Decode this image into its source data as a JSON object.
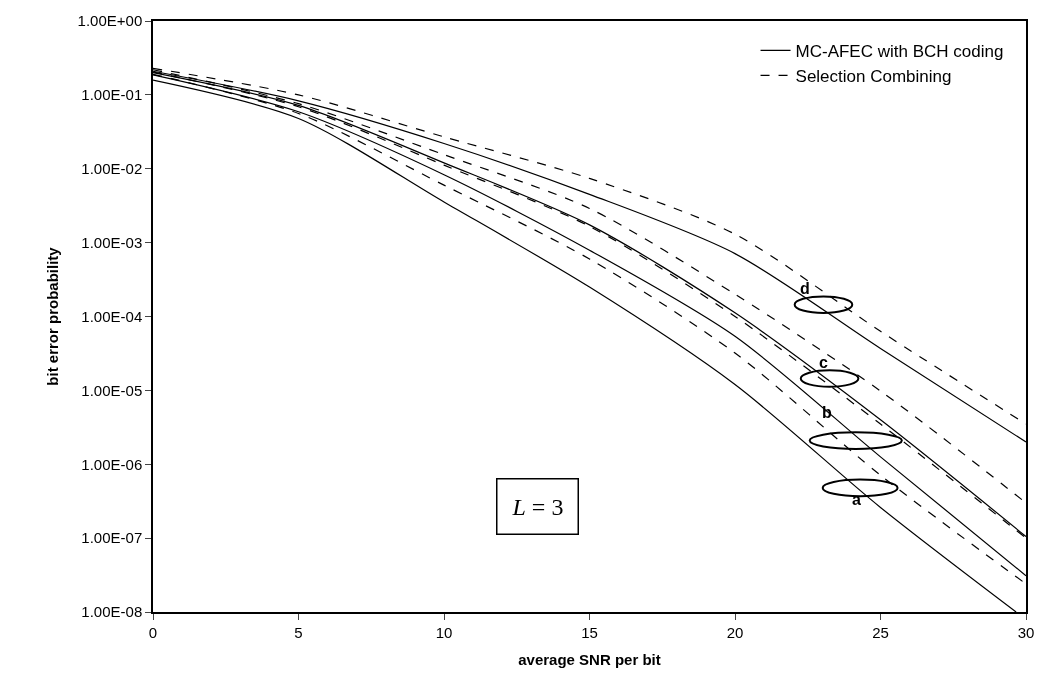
{
  "chart_data": {
    "type": "line",
    "xlabel": "average SNR per bit",
    "ylabel": "bit error probability",
    "x": [
      0,
      5,
      10,
      15,
      20,
      25,
      30
    ],
    "series": [
      {
        "name": "MC-AFEC with BCH coding",
        "color": "#000000",
        "line_style": "solid",
        "x": [
          0,
          5,
          10,
          15,
          20,
          25,
          29.66
        ],
        "values": [
          0.158,
          0.0479,
          0.00355,
          0.00025,
          1.2e-05,
          2.6e-07,
          1e-08
        ]
      },
      {
        "color": "#000000",
        "line_style": "solid",
        "values": [
          0.186,
          0.059,
          0.0083,
          0.00079,
          5.4e-05,
          1.26e-06,
          3.1e-08
        ]
      },
      {
        "color": "#000000",
        "line_style": "solid",
        "values": [
          0.2,
          0.072,
          0.012,
          0.00174,
          0.000112,
          4e-06,
          1.05e-07
        ]
      },
      {
        "color": "#000000",
        "line_style": "solid",
        "values": [
          0.209,
          0.083,
          0.022,
          0.0045,
          0.00071,
          3.7e-05,
          2e-06
        ]
      },
      {
        "name": "Selection Combining",
        "color": "#000000",
        "line_style": "dashed",
        "values": [
          0.19,
          0.056,
          0.006,
          0.0006,
          3.2e-05,
          7.1e-07,
          2.4e-08
        ]
      },
      {
        "color": "#000000",
        "line_style": "dashed",
        "values": [
          0.204,
          0.069,
          0.0112,
          0.00166,
          0.0001,
          3.5e-06,
          1e-07
        ]
      },
      {
        "color": "#000000",
        "line_style": "dashed",
        "values": [
          0.219,
          0.076,
          0.0155,
          0.0029,
          0.0002,
          9.8e-06,
          3e-07
        ]
      },
      {
        "color": "#000000",
        "line_style": "dashed",
        "values": [
          0.229,
          0.1,
          0.027,
          0.0074,
          0.0013,
          6.3e-05,
          3.5e-06
        ]
      }
    ],
    "xlim": [
      0,
      30
    ],
    "xticks": [
      0,
      5,
      10,
      15,
      20,
      25,
      30
    ],
    "ylim": [
      1e-08,
      1
    ],
    "log": "y",
    "yticks": [
      {
        "value": 1e-08,
        "label": "1.00E-08"
      },
      {
        "value": 1e-07,
        "label": "1.00E-07"
      },
      {
        "value": 1e-06,
        "label": "1.00E-06"
      },
      {
        "value": 1e-05,
        "label": "1.00E-05"
      },
      {
        "value": 0.0001,
        "label": "1.00E-04"
      },
      {
        "value": 0.001,
        "label": "1.00E-03"
      },
      {
        "value": 0.01,
        "label": "1.00E-02"
      },
      {
        "value": 0.1,
        "label": "1.00E-01"
      },
      {
        "value": 1,
        "label": "1.00E+00"
      }
    ],
    "annotations": [
      "d",
      "c",
      "b",
      "a",
      "L = 3"
    ],
    "legend": "top right",
    "marker": "none"
  }
}
